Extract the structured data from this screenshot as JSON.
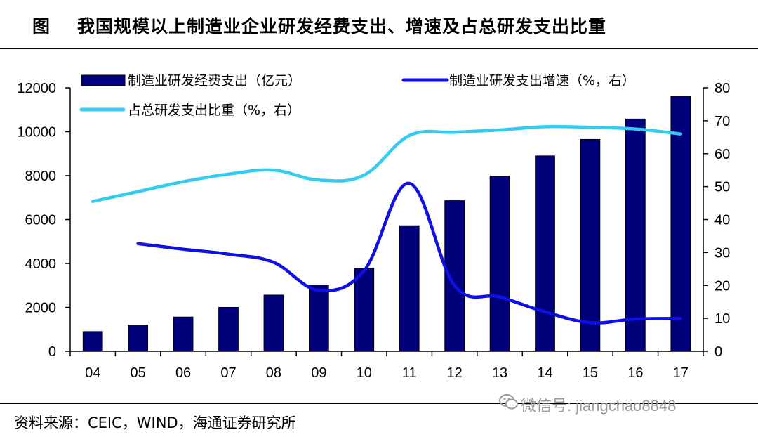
{
  "header": {
    "figure_label": "图",
    "title": "我国规模以上制造业企业研发经费支出、增速及占总研发支出比重"
  },
  "footer": {
    "source": "资料来源：CEIC，WIND，海通证券研究所",
    "watermark": "微信号: jiangchao8848"
  },
  "chart_data": {
    "type": "bar",
    "categories": [
      "04",
      "05",
      "06",
      "07",
      "08",
      "09",
      "10",
      "11",
      "12",
      "13",
      "14",
      "15",
      "16",
      "17"
    ],
    "series": [
      {
        "name": "制造业研发经费支出（亿元）",
        "kind": "bar",
        "axis": "left",
        "color": "#00007a",
        "values": [
          900,
          1190,
          1560,
          2000,
          2560,
          3020,
          3780,
          5720,
          6860,
          7980,
          8900,
          9650,
          10580,
          11630
        ]
      },
      {
        "name": "制造业研发支出增速（%，右）",
        "kind": "line",
        "axis": "right",
        "color": "#0f0fe6",
        "values": [
          null,
          32.7,
          31,
          29.5,
          27,
          18.5,
          24.5,
          51,
          20,
          16.5,
          12,
          8.7,
          9.8,
          10
        ]
      },
      {
        "name": "占总研发支出比重（%，右）",
        "kind": "line",
        "axis": "right",
        "color": "#33ccf0",
        "values": [
          45.5,
          48.5,
          51.5,
          53.8,
          55,
          52,
          53.5,
          65.5,
          66.5,
          67.2,
          68.2,
          68,
          67.5,
          66
        ]
      }
    ],
    "y_left": {
      "ylim": [
        0,
        12000
      ],
      "ticks": [
        "0",
        "2000",
        "4000",
        "6000",
        "8000",
        "10000",
        "12000"
      ]
    },
    "y_right": {
      "ylim": [
        0,
        80
      ],
      "ticks": [
        "0",
        "10",
        "20",
        "30",
        "40",
        "50",
        "60",
        "70",
        "80"
      ]
    },
    "legend_placement": "top",
    "grid": false
  },
  "colors": {
    "bar": "#00007a",
    "bar_edge": "#000000",
    "growth_line": "#0f0fe6",
    "share_line": "#33ccf0"
  }
}
